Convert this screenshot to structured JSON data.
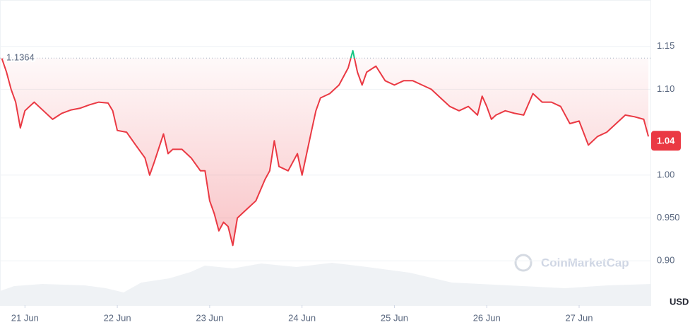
{
  "chart_data": {
    "type": "line",
    "x": [
      20.75,
      20.8,
      20.85,
      20.9,
      20.95,
      21.0,
      21.05,
      21.1,
      21.15,
      21.2,
      21.3,
      21.4,
      21.5,
      21.6,
      21.7,
      21.8,
      21.9,
      21.95,
      22.0,
      22.1,
      22.2,
      22.3,
      22.35,
      22.4,
      22.5,
      22.55,
      22.6,
      22.7,
      22.8,
      22.9,
      22.95,
      23.0,
      23.05,
      23.1,
      23.15,
      23.2,
      23.25,
      23.3,
      23.4,
      23.5,
      23.6,
      23.65,
      23.7,
      23.75,
      23.85,
      23.95,
      24.0,
      24.05,
      24.1,
      24.15,
      24.2,
      24.3,
      24.4,
      24.5,
      24.55,
      24.6,
      24.65,
      24.7,
      24.8,
      24.9,
      25.0,
      25.1,
      25.2,
      25.3,
      25.4,
      25.5,
      25.6,
      25.7,
      25.8,
      25.9,
      25.95,
      26.0,
      26.05,
      26.1,
      26.2,
      26.3,
      26.4,
      26.5,
      26.6,
      26.7,
      26.8,
      26.9,
      27.0,
      27.1,
      27.2,
      27.3,
      27.4,
      27.5,
      27.6,
      27.7,
      27.75
    ],
    "series": [
      {
        "color": "#ea3943",
        "values": [
          1.136,
          1.12,
          1.1,
          1.085,
          1.055,
          1.075,
          1.08,
          1.085,
          1.08,
          1.075,
          1.065,
          1.072,
          1.076,
          1.078,
          1.082,
          1.085,
          1.084,
          1.075,
          1.052,
          1.05,
          1.035,
          1.02,
          1.0,
          1.015,
          1.048,
          1.025,
          1.03,
          1.03,
          1.02,
          1.005,
          1.005,
          0.97,
          0.955,
          0.935,
          0.945,
          0.94,
          0.918,
          0.95,
          0.96,
          0.97,
          0.995,
          1.005,
          1.04,
          1.01,
          1.005,
          1.025,
          1.0,
          1.025,
          1.05,
          1.075,
          1.09,
          1.095,
          1.105,
          1.125,
          1.145,
          1.12,
          1.105,
          1.12,
          1.127,
          1.11,
          1.105,
          1.11,
          1.11,
          1.105,
          1.1,
          1.09,
          1.08,
          1.075,
          1.08,
          1.07,
          1.092,
          1.08,
          1.065,
          1.07,
          1.075,
          1.072,
          1.07,
          1.095,
          1.085,
          1.085,
          1.08,
          1.06,
          1.063,
          1.035,
          1.045,
          1.05,
          1.06,
          1.07,
          1.068,
          1.065,
          1.045
        ]
      }
    ],
    "above_color": "#16c784",
    "reference": 1.1364,
    "current_price": 1.04,
    "xlim": [
      20.73,
      27.78
    ],
    "xticks": [
      {
        "value": 21,
        "label": "21 Jun"
      },
      {
        "value": 22,
        "label": "22 Jun"
      },
      {
        "value": 23,
        "label": "23 Jun"
      },
      {
        "value": 24,
        "label": "24 Jun"
      },
      {
        "value": 25,
        "label": "25 Jun"
      },
      {
        "value": 26,
        "label": "26 Jun"
      },
      {
        "value": 27,
        "label": "27 Jun"
      }
    ],
    "ylim": [
      0.85,
      1.2
    ],
    "yticks": [
      {
        "value": 0.9,
        "label": "0.90"
      },
      {
        "value": 0.95,
        "label": "0.950"
      },
      {
        "value": 1.0,
        "label": "1.00"
      },
      {
        "value": 1.1,
        "label": "1.10"
      },
      1.15
    ],
    "y_unit": "USD",
    "watermark": "CoinMarketCap",
    "grid": true
  }
}
